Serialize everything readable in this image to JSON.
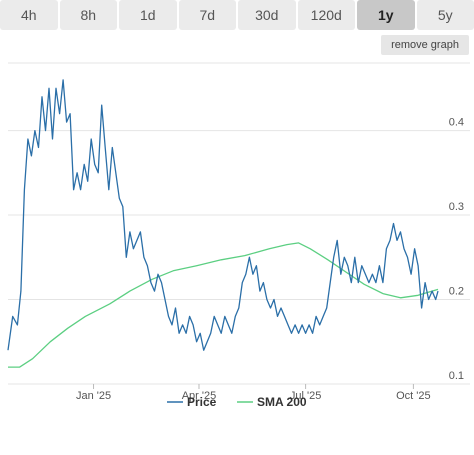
{
  "ranges": [
    {
      "label": "4h",
      "active": false
    },
    {
      "label": "8h",
      "active": false
    },
    {
      "label": "1d",
      "active": false
    },
    {
      "label": "7d",
      "active": false
    },
    {
      "label": "30d",
      "active": false
    },
    {
      "label": "120d",
      "active": false
    },
    {
      "label": "1y",
      "active": true
    },
    {
      "label": "5y",
      "active": false
    }
  ],
  "remove_graph_label": "remove graph",
  "colors": {
    "price": "#2b6fa8",
    "sma": "#5ccf82"
  },
  "chart_data": {
    "type": "line",
    "title": "",
    "xlabel": "",
    "ylabel": "",
    "x_ticks": [
      "Jan '25",
      "Apr '25",
      "Jul '25",
      "Oct '25"
    ],
    "x_tick_dates": [
      "2025-01-01",
      "2025-04-01",
      "2025-07-01",
      "2025-10-01"
    ],
    "x_range": [
      "2024-10-20",
      "2025-10-22"
    ],
    "y_ticks": [
      0.1,
      0.2,
      0.3,
      0.4
    ],
    "y_tick_labels": [
      "0.1",
      "0.2",
      "0.3",
      "0.4"
    ],
    "ylim": [
      0.1,
      0.48
    ],
    "grid": true,
    "legend_position": "bottom",
    "series": [
      {
        "name": "Price",
        "color": "#2b6fa8",
        "points": [
          [
            "2024-10-20",
            0.14
          ],
          [
            "2024-10-24",
            0.18
          ],
          [
            "2024-10-28",
            0.17
          ],
          [
            "2024-10-31",
            0.21
          ],
          [
            "2024-11-03",
            0.33
          ],
          [
            "2024-11-06",
            0.39
          ],
          [
            "2024-11-09",
            0.37
          ],
          [
            "2024-11-12",
            0.4
          ],
          [
            "2024-11-15",
            0.38
          ],
          [
            "2024-11-18",
            0.44
          ],
          [
            "2024-11-21",
            0.4
          ],
          [
            "2024-11-24",
            0.45
          ],
          [
            "2024-11-27",
            0.39
          ],
          [
            "2024-11-30",
            0.45
          ],
          [
            "2024-12-03",
            0.42
          ],
          [
            "2024-12-06",
            0.46
          ],
          [
            "2024-12-09",
            0.41
          ],
          [
            "2024-12-12",
            0.42
          ],
          [
            "2024-12-15",
            0.33
          ],
          [
            "2024-12-18",
            0.35
          ],
          [
            "2024-12-21",
            0.33
          ],
          [
            "2024-12-24",
            0.36
          ],
          [
            "2024-12-27",
            0.34
          ],
          [
            "2024-12-30",
            0.39
          ],
          [
            "2025-01-02",
            0.36
          ],
          [
            "2025-01-05",
            0.35
          ],
          [
            "2025-01-08",
            0.43
          ],
          [
            "2025-01-11",
            0.38
          ],
          [
            "2025-01-14",
            0.33
          ],
          [
            "2025-01-17",
            0.38
          ],
          [
            "2025-01-20",
            0.35
          ],
          [
            "2025-01-23",
            0.32
          ],
          [
            "2025-01-26",
            0.31
          ],
          [
            "2025-01-29",
            0.25
          ],
          [
            "2025-02-01",
            0.28
          ],
          [
            "2025-02-04",
            0.26
          ],
          [
            "2025-02-07",
            0.27
          ],
          [
            "2025-02-10",
            0.28
          ],
          [
            "2025-02-13",
            0.25
          ],
          [
            "2025-02-16",
            0.24
          ],
          [
            "2025-02-19",
            0.22
          ],
          [
            "2025-02-22",
            0.21
          ],
          [
            "2025-02-25",
            0.23
          ],
          [
            "2025-02-28",
            0.22
          ],
          [
            "2025-03-03",
            0.2
          ],
          [
            "2025-03-06",
            0.18
          ],
          [
            "2025-03-09",
            0.17
          ],
          [
            "2025-03-12",
            0.19
          ],
          [
            "2025-03-15",
            0.16
          ],
          [
            "2025-03-18",
            0.17
          ],
          [
            "2025-03-21",
            0.16
          ],
          [
            "2025-03-24",
            0.18
          ],
          [
            "2025-03-27",
            0.17
          ],
          [
            "2025-03-30",
            0.15
          ],
          [
            "2025-04-02",
            0.16
          ],
          [
            "2025-04-05",
            0.14
          ],
          [
            "2025-04-08",
            0.15
          ],
          [
            "2025-04-11",
            0.16
          ],
          [
            "2025-04-14",
            0.18
          ],
          [
            "2025-04-17",
            0.17
          ],
          [
            "2025-04-20",
            0.16
          ],
          [
            "2025-04-23",
            0.18
          ],
          [
            "2025-04-26",
            0.17
          ],
          [
            "2025-04-29",
            0.16
          ],
          [
            "2025-05-02",
            0.18
          ],
          [
            "2025-05-05",
            0.19
          ],
          [
            "2025-05-08",
            0.22
          ],
          [
            "2025-05-11",
            0.23
          ],
          [
            "2025-05-14",
            0.25
          ],
          [
            "2025-05-17",
            0.23
          ],
          [
            "2025-05-20",
            0.24
          ],
          [
            "2025-05-23",
            0.21
          ],
          [
            "2025-05-26",
            0.22
          ],
          [
            "2025-05-29",
            0.2
          ],
          [
            "2025-06-01",
            0.19
          ],
          [
            "2025-06-04",
            0.2
          ],
          [
            "2025-06-07",
            0.18
          ],
          [
            "2025-06-10",
            0.19
          ],
          [
            "2025-06-13",
            0.18
          ],
          [
            "2025-06-16",
            0.17
          ],
          [
            "2025-06-19",
            0.16
          ],
          [
            "2025-06-22",
            0.17
          ],
          [
            "2025-06-25",
            0.16
          ],
          [
            "2025-06-28",
            0.17
          ],
          [
            "2025-07-01",
            0.16
          ],
          [
            "2025-07-04",
            0.17
          ],
          [
            "2025-07-07",
            0.16
          ],
          [
            "2025-07-10",
            0.18
          ],
          [
            "2025-07-13",
            0.17
          ],
          [
            "2025-07-16",
            0.18
          ],
          [
            "2025-07-19",
            0.19
          ],
          [
            "2025-07-22",
            0.22
          ],
          [
            "2025-07-25",
            0.25
          ],
          [
            "2025-07-28",
            0.27
          ],
          [
            "2025-07-31",
            0.23
          ],
          [
            "2025-08-03",
            0.25
          ],
          [
            "2025-08-06",
            0.24
          ],
          [
            "2025-08-09",
            0.22
          ],
          [
            "2025-08-12",
            0.25
          ],
          [
            "2025-08-15",
            0.22
          ],
          [
            "2025-08-18",
            0.24
          ],
          [
            "2025-08-21",
            0.23
          ],
          [
            "2025-08-24",
            0.22
          ],
          [
            "2025-08-27",
            0.23
          ],
          [
            "2025-08-30",
            0.22
          ],
          [
            "2025-09-02",
            0.24
          ],
          [
            "2025-09-05",
            0.22
          ],
          [
            "2025-09-08",
            0.26
          ],
          [
            "2025-09-11",
            0.27
          ],
          [
            "2025-09-14",
            0.29
          ],
          [
            "2025-09-17",
            0.27
          ],
          [
            "2025-09-20",
            0.28
          ],
          [
            "2025-09-23",
            0.26
          ],
          [
            "2025-09-26",
            0.25
          ],
          [
            "2025-09-29",
            0.23
          ],
          [
            "2025-10-02",
            0.26
          ],
          [
            "2025-10-05",
            0.24
          ],
          [
            "2025-10-08",
            0.19
          ],
          [
            "2025-10-11",
            0.22
          ],
          [
            "2025-10-14",
            0.2
          ],
          [
            "2025-10-17",
            0.21
          ],
          [
            "2025-10-20",
            0.2
          ],
          [
            "2025-10-22",
            0.21
          ]
        ]
      },
      {
        "name": "SMA 200",
        "color": "#5ccf82",
        "points": [
          [
            "2024-10-20",
            0.12
          ],
          [
            "2024-10-30",
            0.12
          ],
          [
            "2024-11-10",
            0.13
          ],
          [
            "2024-11-25",
            0.15
          ],
          [
            "2024-12-10",
            0.166
          ],
          [
            "2024-12-25",
            0.18
          ],
          [
            "2025-01-15",
            0.195
          ],
          [
            "2025-02-01",
            0.21
          ],
          [
            "2025-02-20",
            0.224
          ],
          [
            "2025-03-10",
            0.234
          ],
          [
            "2025-03-30",
            0.24
          ],
          [
            "2025-04-20",
            0.247
          ],
          [
            "2025-05-10",
            0.252
          ],
          [
            "2025-05-31",
            0.26
          ],
          [
            "2025-06-15",
            0.265
          ],
          [
            "2025-06-25",
            0.267
          ],
          [
            "2025-07-05",
            0.26
          ],
          [
            "2025-07-20",
            0.247
          ],
          [
            "2025-08-05",
            0.232
          ],
          [
            "2025-08-20",
            0.218
          ],
          [
            "2025-09-05",
            0.207
          ],
          [
            "2025-09-20",
            0.202
          ],
          [
            "2025-10-05",
            0.205
          ],
          [
            "2025-10-22",
            0.212
          ]
        ]
      }
    ]
  }
}
